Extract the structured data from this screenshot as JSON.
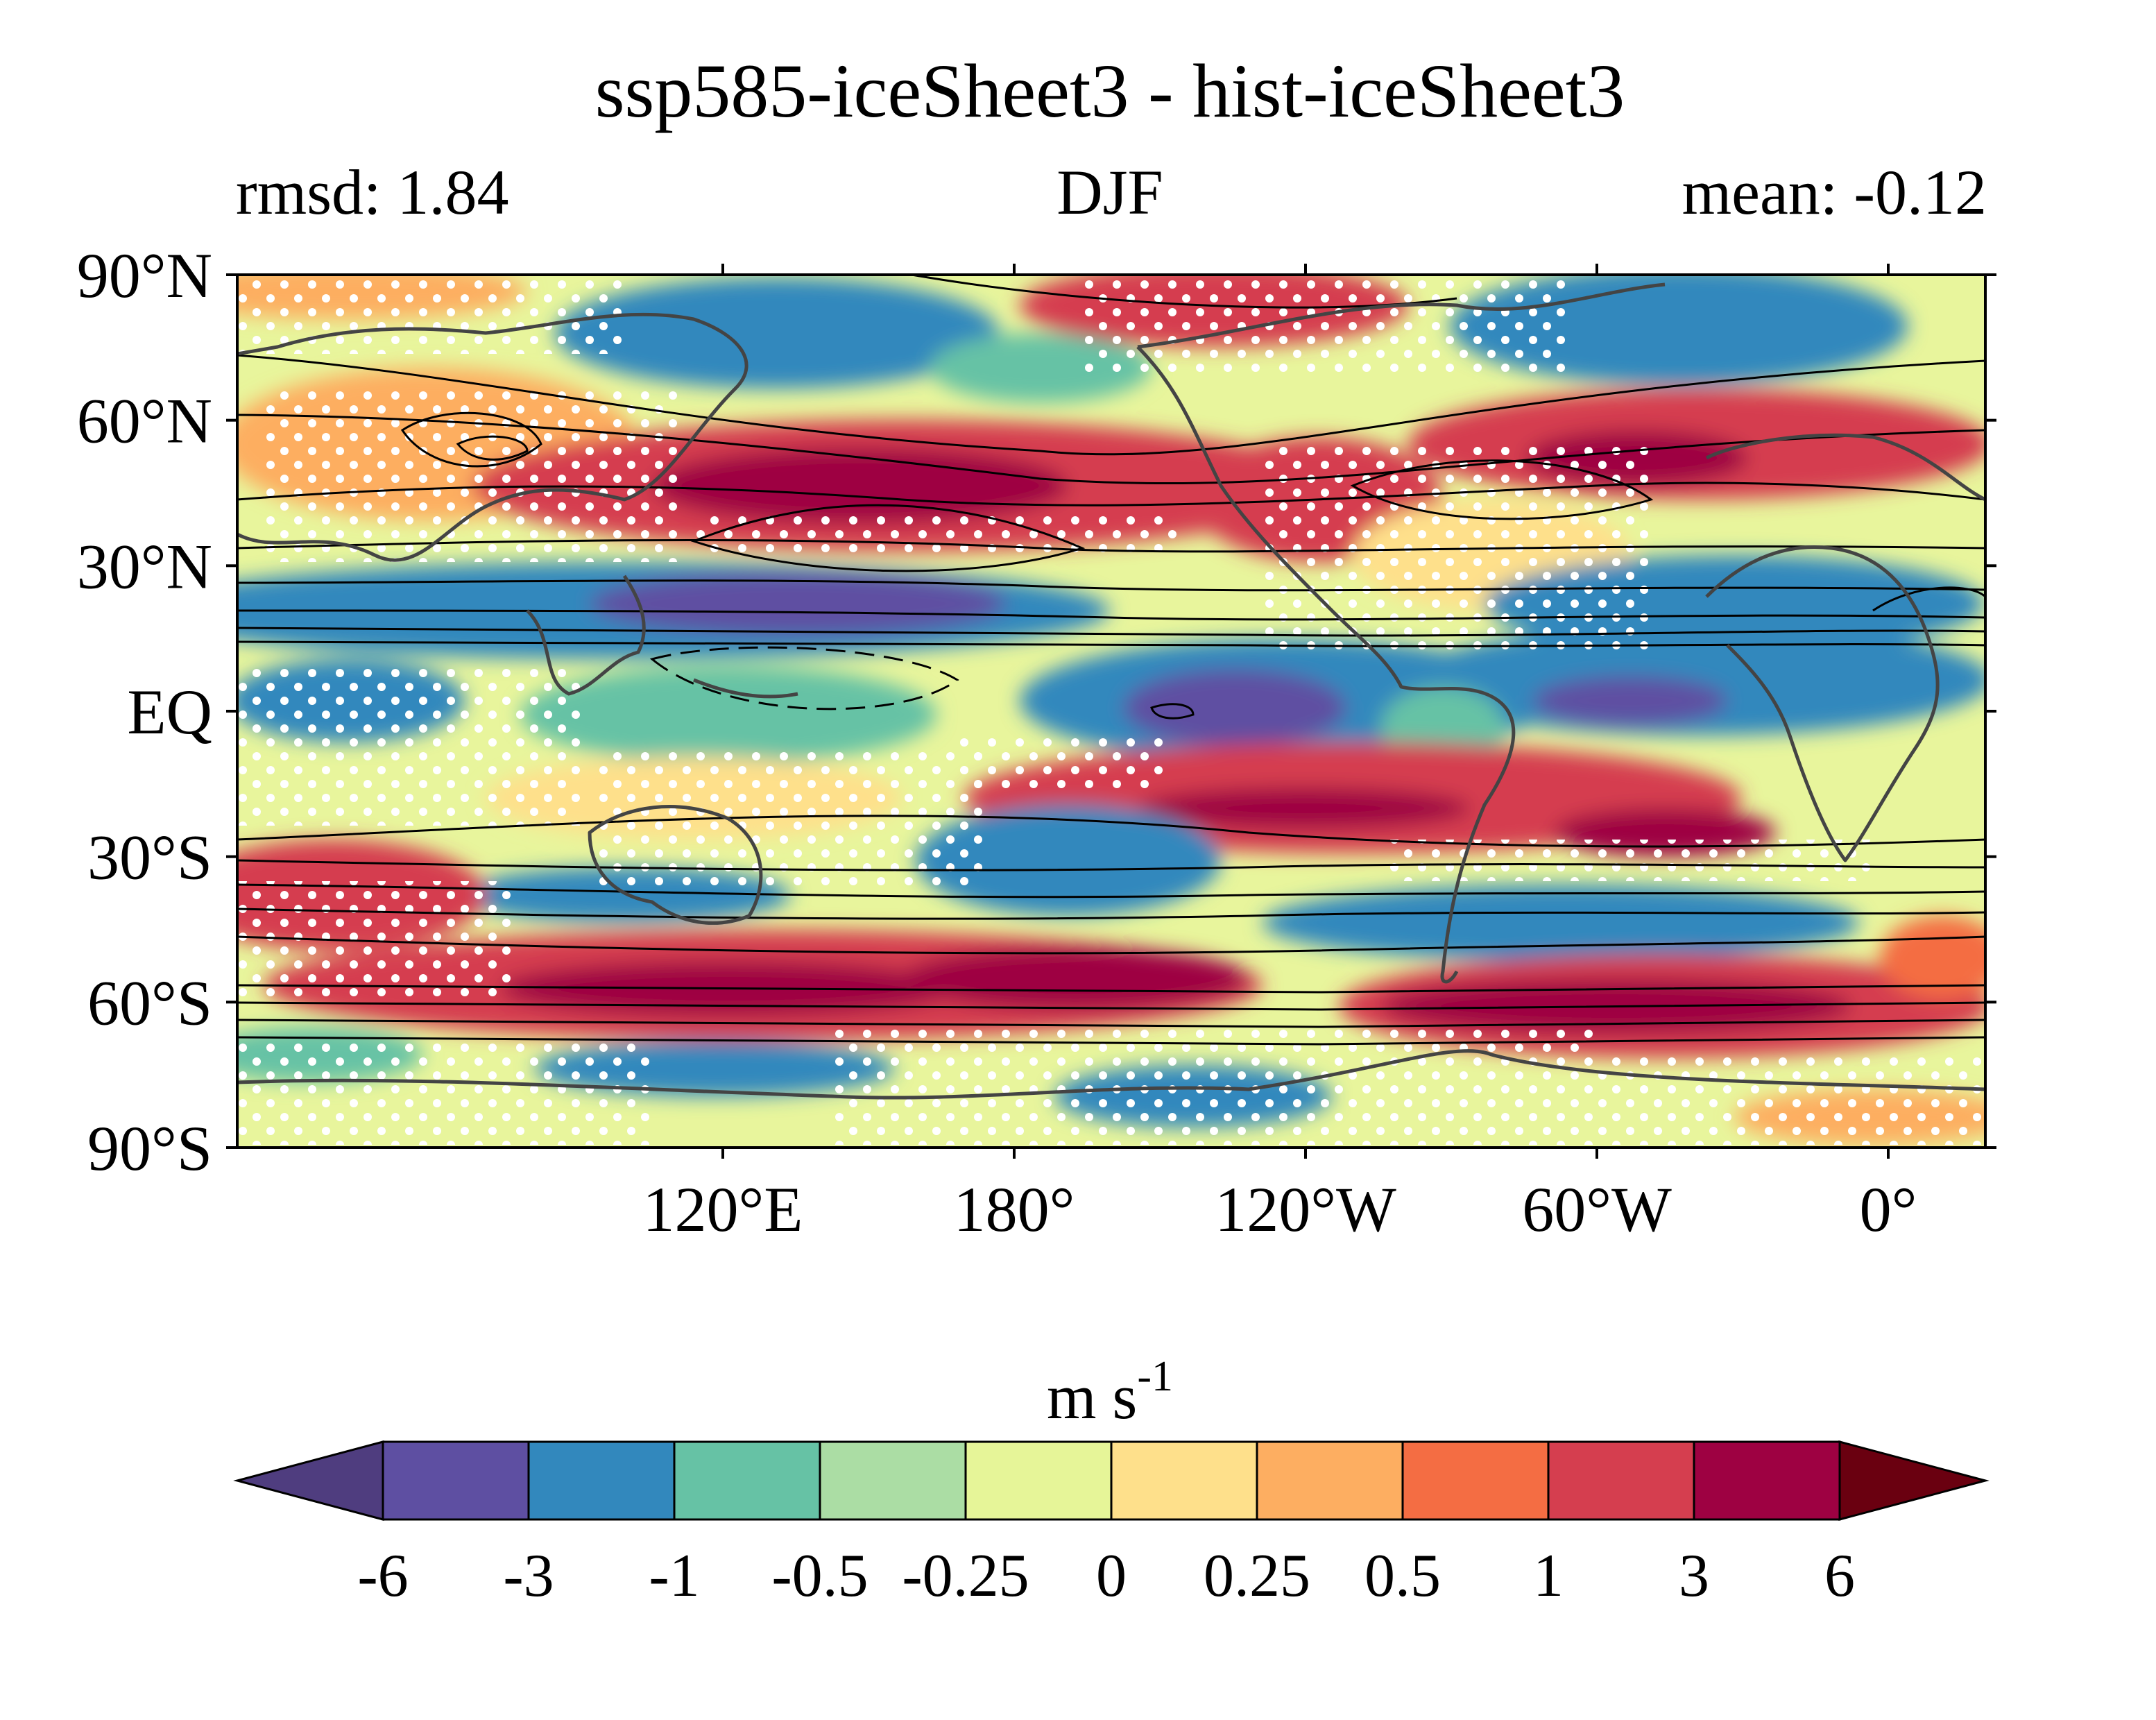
{
  "title": "ssp585-iceSheet3 - hist-iceSheet3",
  "subtitle": {
    "left": "rmsd: 1.84",
    "center": "DJF",
    "right": "mean: -0.12"
  },
  "map": {
    "lon_range_deg_east": [
      20,
      380
    ],
    "lat_range": [
      -90,
      90
    ],
    "x_ticks": [
      {
        "lon": 120,
        "label": "120°E"
      },
      {
        "lon": 180,
        "label": "180°"
      },
      {
        "lon": 240,
        "label": "120°W"
      },
      {
        "lon": 300,
        "label": "60°W"
      },
      {
        "lon": 360,
        "label": "0°"
      }
    ],
    "y_ticks": [
      {
        "lat": 90,
        "label": "90°N"
      },
      {
        "lat": 60,
        "label": "60°N"
      },
      {
        "lat": 30,
        "label": "30°N"
      },
      {
        "lat": 0,
        "label": "EQ"
      },
      {
        "lat": -30,
        "label": "30°S"
      },
      {
        "lat": -60,
        "label": "60°S"
      },
      {
        "lat": -90,
        "label": "90°S"
      }
    ],
    "colors": {
      "background": "#e8f59c",
      "coast": "#444444",
      "contour": "#000000",
      "stipple": "#ffffff"
    }
  },
  "colorbar": {
    "units_base": "m s",
    "units_exp": "-1",
    "ticks": [
      "-6",
      "-3",
      "-1",
      "-0.5",
      "-0.25",
      "0",
      "0.25",
      "0.5",
      "1",
      "3",
      "6"
    ],
    "colors": [
      "#5e4fa2",
      "#3288bd",
      "#66c2a5",
      "#abdda4",
      "#e6f598",
      "#fee08b",
      "#fdae61",
      "#f46d43",
      "#d53e4f",
      "#9e0142"
    ],
    "under_color": "#4f3d7f",
    "over_color": "#6a0010"
  }
}
